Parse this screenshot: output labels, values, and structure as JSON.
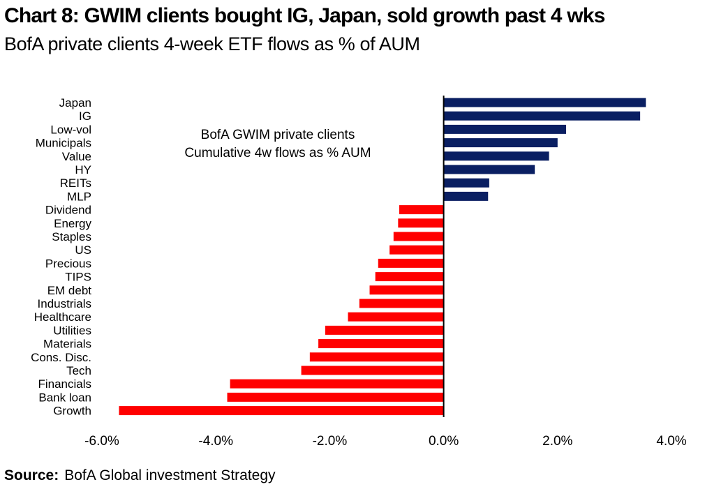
{
  "title": "Chart 8: GWIM clients bought IG, Japan, sold growth past 4 wks",
  "subtitle": "BofA private clients 4-week ETF flows as % of AUM",
  "source": {
    "label": "Source:",
    "text": "BofA Global investment Strategy"
  },
  "colors": {
    "positive": "#0a1f62",
    "negative": "#ff0000",
    "axis": "#000000"
  },
  "chart_data": {
    "type": "bar",
    "orientation": "horizontal",
    "categories": [
      "Japan",
      "IG",
      "Low-vol",
      "Municipals",
      "Value",
      "HY",
      "REITs",
      "MLP",
      "Dividend",
      "Energy",
      "Staples",
      "US",
      "Precious",
      "TIPS",
      "EM debt",
      "Industrials",
      "Healthcare",
      "Utilities",
      "Materials",
      "Cons. Disc.",
      "Tech",
      "Financials",
      "Bank loan",
      "Growth"
    ],
    "values": [
      3.55,
      3.45,
      2.15,
      2.0,
      1.85,
      1.6,
      0.8,
      0.78,
      -0.78,
      -0.8,
      -0.88,
      -0.95,
      -1.15,
      -1.2,
      -1.3,
      -1.48,
      -1.68,
      -2.08,
      -2.2,
      -2.35,
      -2.5,
      -3.75,
      -3.8,
      -5.7
    ],
    "xlim": [
      -6.0,
      4.0
    ],
    "x_ticks": [
      -6.0,
      -4.0,
      -2.0,
      0.0,
      2.0,
      4.0
    ],
    "x_tick_labels": [
      "-6.0%",
      "-4.0%",
      "-2.0%",
      "0.0%",
      "2.0%",
      "4.0%"
    ],
    "annotation": [
      "BofA GWIM private clients",
      "Cumulative 4w flows as % AUM"
    ],
    "grid": false,
    "legend": "none"
  }
}
